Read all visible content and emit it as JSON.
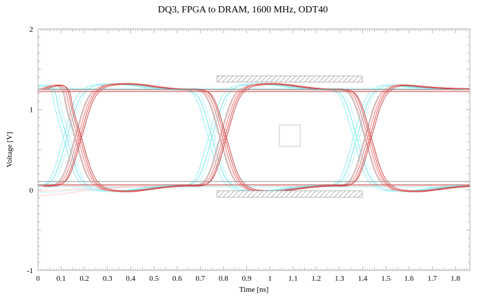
{
  "chart_data": {
    "type": "line",
    "subtype": "eye-diagram",
    "title": "DQ3, FPGA to DRAM, 1600 MHz, ODT40",
    "xlabel": "Time [ns]",
    "ylabel": "Voltage [V]",
    "xlim": [
      0,
      1.8625
    ],
    "ylim": [
      -1,
      2
    ],
    "grid": false,
    "x_ticks": {
      "major_step": 0.1,
      "medium_step": 0.05,
      "minor_step": 0.01,
      "labels": [
        "0",
        "0.1",
        "0.2",
        "0.3",
        "0.4",
        "0.5",
        "0.6",
        "0.7",
        "0.8",
        "0.9",
        "1",
        "1.1",
        "1.2",
        "1.3",
        "1.4",
        "1.5",
        "1.6",
        "1.7",
        "1.8"
      ]
    },
    "y_ticks": {
      "major_step": 1,
      "medium_step": 0.5,
      "minor_step": 0.1,
      "labels": [
        "-1",
        "0",
        "1",
        "2"
      ]
    },
    "signal": {
      "unit_interval_ns": 0.625,
      "crossing_times_ns": [
        0.155,
        0.78,
        1.405
      ],
      "crossing_voltage": 0.65,
      "v_high": 1.25,
      "v_low": 0.05,
      "overshoot_peak": 1.32,
      "undershoot_min": -0.02
    },
    "colors": {
      "frame": "#b2b2b2",
      "text": "#000000",
      "hatch": "#999999",
      "mask_border": "#a8a8a8",
      "square_border": "#c8c8c8",
      "background": "#ffffff"
    },
    "masks": [
      {
        "name": "top-overshoot-mask",
        "t": [
          0.772,
          1.399
        ],
        "v": [
          1.34,
          1.417
        ],
        "hatched": true
      },
      {
        "name": "bottom-undershoot-mask",
        "t": [
          0.772,
          1.399
        ],
        "v": [
          -0.092,
          -0.012
        ],
        "hatched": true
      },
      {
        "name": "eye-center-mask",
        "t": [
          1.041,
          1.131
        ],
        "v": [
          0.542,
          0.808
        ],
        "hatched": false
      }
    ],
    "waveforms": {
      "A": [
        [
          0,
          1.252
        ],
        [
          0.03,
          1.283
        ],
        [
          0.06,
          1.3
        ],
        [
          0.085,
          1.288
        ],
        [
          0.105,
          1.21
        ],
        [
          0.12,
          1.0
        ],
        [
          0.155,
          0.65
        ],
        [
          0.19,
          0.3
        ],
        [
          0.215,
          0.135
        ],
        [
          0.24,
          0.055
        ],
        [
          0.27,
          0.008
        ],
        [
          0.315,
          -0.013
        ],
        [
          0.375,
          -0.018
        ],
        [
          0.435,
          0.0
        ],
        [
          0.515,
          0.03
        ],
        [
          0.595,
          0.05
        ],
        [
          0.665,
          0.052
        ],
        [
          0.695,
          0.07
        ],
        [
          0.72,
          0.135
        ],
        [
          0.745,
          0.3
        ],
        [
          0.78,
          0.65
        ],
        [
          0.815,
          1.0
        ],
        [
          0.84,
          1.165
        ],
        [
          0.865,
          1.245
        ],
        [
          0.895,
          1.292
        ],
        [
          0.94,
          1.313
        ],
        [
          1.0,
          1.318
        ],
        [
          1.06,
          1.302
        ],
        [
          1.14,
          1.272
        ],
        [
          1.22,
          1.25
        ],
        [
          1.29,
          1.248
        ],
        [
          1.32,
          1.23
        ],
        [
          1.345,
          1.165
        ],
        [
          1.37,
          1.0
        ],
        [
          1.405,
          0.65
        ],
        [
          1.44,
          0.3
        ],
        [
          1.465,
          0.135
        ],
        [
          1.49,
          0.055
        ],
        [
          1.52,
          0.008
        ],
        [
          1.565,
          -0.013
        ],
        [
          1.625,
          -0.018
        ],
        [
          1.685,
          0.0
        ],
        [
          1.765,
          0.03
        ],
        [
          1.845,
          0.05
        ],
        [
          1.8625,
          0.052
        ]
      ],
      "B": [
        [
          0,
          0.048
        ],
        [
          0.04,
          0.052
        ],
        [
          0.07,
          0.07
        ],
        [
          0.095,
          0.135
        ],
        [
          0.12,
          0.3
        ],
        [
          0.155,
          0.65
        ],
        [
          0.19,
          1.0
        ],
        [
          0.215,
          1.165
        ],
        [
          0.24,
          1.245
        ],
        [
          0.27,
          1.292
        ],
        [
          0.315,
          1.313
        ],
        [
          0.375,
          1.318
        ],
        [
          0.435,
          1.302
        ],
        [
          0.515,
          1.272
        ],
        [
          0.595,
          1.25
        ],
        [
          0.665,
          1.248
        ],
        [
          0.695,
          1.23
        ],
        [
          0.72,
          1.165
        ],
        [
          0.745,
          1.0
        ],
        [
          0.78,
          0.65
        ],
        [
          0.815,
          0.3
        ],
        [
          0.84,
          0.135
        ],
        [
          0.865,
          0.055
        ],
        [
          0.895,
          0.008
        ],
        [
          0.94,
          -0.013
        ],
        [
          1.0,
          -0.018
        ],
        [
          1.06,
          0.0
        ],
        [
          1.14,
          0.03
        ],
        [
          1.22,
          0.05
        ],
        [
          1.29,
          0.052
        ],
        [
          1.32,
          0.07
        ],
        [
          1.345,
          0.135
        ],
        [
          1.37,
          0.3
        ],
        [
          1.405,
          0.65
        ],
        [
          1.44,
          1.0
        ],
        [
          1.465,
          1.165
        ],
        [
          1.49,
          1.245
        ],
        [
          1.52,
          1.292
        ],
        [
          1.565,
          1.3
        ],
        [
          1.625,
          1.285
        ],
        [
          1.7,
          1.268
        ],
        [
          1.78,
          1.258
        ],
        [
          1.8625,
          1.252
        ]
      ]
    },
    "flat_lines_background": [
      {
        "v": 1.262,
        "color": "#aef2f5",
        "width": 1.1,
        "opacity": 0.9
      },
      {
        "v": 0.038,
        "color": "#aef2f5",
        "width": 1.1,
        "opacity": 0.9
      },
      {
        "v": 1.238,
        "color": "#ffb0b0",
        "width": 1.0,
        "opacity": 0.9
      },
      {
        "v": 0.052,
        "color": "#ffb0b0",
        "width": 1.0,
        "opacity": 0.9
      }
    ],
    "flat_lines_foreground": [
      {
        "v": 1.25,
        "color": "#8f8f8f",
        "width": 1.0,
        "opacity": 0.95
      },
      {
        "v": 0.105,
        "color": "#8f8f8f",
        "width": 1.0,
        "opacity": 0.95
      },
      {
        "v": 1.222,
        "color": "#c24a4a",
        "width": 1.0,
        "opacity": 0.95
      },
      {
        "v": 0.064,
        "color": "#c24a4a",
        "width": 1.0,
        "opacity": 0.95
      }
    ],
    "tails": [
      {
        "color": "#ffc4c4",
        "width": 1.0,
        "opacity": 0.85,
        "points": [
          [
            0,
            -0.075
          ],
          [
            0.1,
            -0.05
          ],
          [
            0.2,
            -0.012
          ],
          [
            0.32,
            0.02
          ],
          [
            0.46,
            0.04
          ],
          [
            0.62,
            0.048
          ],
          [
            0.9,
            0.05
          ]
        ]
      },
      {
        "color": "#bdf3f6",
        "width": 1.0,
        "opacity": 0.85,
        "points": [
          [
            0,
            -0.038
          ],
          [
            0.1,
            -0.02
          ],
          [
            0.2,
            0.005
          ],
          [
            0.34,
            0.028
          ],
          [
            0.5,
            0.042
          ],
          [
            0.7,
            0.048
          ],
          [
            0.95,
            0.05
          ]
        ]
      },
      {
        "color": "#ffc4c4",
        "width": 1.0,
        "opacity": 0.85,
        "points": [
          [
            0,
            -0.02
          ],
          [
            0.12,
            0.0
          ],
          [
            0.26,
            0.022
          ],
          [
            0.42,
            0.04
          ],
          [
            0.6,
            0.048
          ],
          [
            0.85,
            0.05
          ]
        ]
      }
    ],
    "trace_families": [
      {
        "name": "cyan-early",
        "color": "#9ff0f4",
        "dt": -0.045,
        "vscale": 1.005,
        "width": 1.2,
        "opacity": 0.95,
        "phases": [
          "A",
          "B"
        ]
      },
      {
        "name": "cyan-mid",
        "color": "#7fe9f0",
        "dt": -0.03,
        "vscale": 0.99,
        "width": 1.2,
        "opacity": 0.95,
        "phases": [
          "A",
          "B"
        ]
      },
      {
        "name": "cyan-late",
        "color": "#c2f5f7",
        "dt": -0.018,
        "vscale": 1.012,
        "width": 1.2,
        "opacity": 0.9,
        "phases": [
          "A",
          "B"
        ]
      },
      {
        "name": "gray-nominal",
        "color": "#9a9a9a",
        "dt": 0.004,
        "vscale": 0.995,
        "width": 1.0,
        "opacity": 0.9,
        "phases": [
          "A",
          "B"
        ]
      },
      {
        "name": "salmon",
        "color": "#ffb0b0",
        "dt": 0.008,
        "vscale": 1.005,
        "width": 1.0,
        "opacity": 0.95,
        "phases": [
          "A",
          "B"
        ]
      },
      {
        "name": "red-mid",
        "color": "#f07676",
        "dt": 0.017,
        "vscale": 0.998,
        "width": 1.0,
        "opacity": 0.95,
        "phases": [
          "A",
          "B"
        ]
      },
      {
        "name": "red",
        "color": "#e04f4f",
        "dt": 0.026,
        "vscale": 1.008,
        "width": 1.0,
        "opacity": 0.95,
        "phases": [
          "A",
          "B"
        ]
      },
      {
        "name": "dark-red",
        "color": "#bf4343",
        "dt": 0.033,
        "vscale": 0.992,
        "width": 1.0,
        "opacity": 0.95,
        "phases": [
          "A",
          "B"
        ]
      }
    ]
  }
}
